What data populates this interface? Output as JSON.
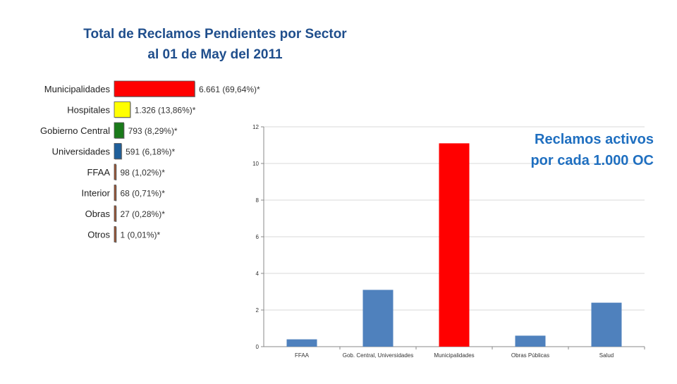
{
  "title_line1": "Total de Reclamos Pendientes por Sector",
  "title_line2": "al 01 de May del 2011",
  "note_line1": "Reclamos activos",
  "note_line2": "por cada 1.000 OC",
  "chart_data": [
    {
      "type": "bar",
      "orientation": "horizontal",
      "title": "Total de Reclamos Pendientes por Sector al 01 de May del 2011",
      "categories": [
        "Municipalidades",
        "Hospitales",
        "Gobierno Central",
        "Universidades",
        "FFAA",
        "Interior",
        "Obras",
        "Otros"
      ],
      "values": [
        6661,
        1326,
        793,
        591,
        98,
        68,
        27,
        1
      ],
      "value_labels": [
        "6.661 (69,64%)*",
        "1.326 (13,86%)*",
        "793 (8,29%)*",
        "591 (6,18%)*",
        "98 (1,02%)*",
        "68 (0,71%)*",
        "27 (0,28%)*",
        "1 (0,01%)*"
      ],
      "colors": [
        "#ff0000",
        "#ffff00",
        "#1a7a1a",
        "#1f5f9a",
        "#a0522d",
        "#a0522d",
        "#a0522d",
        "#a0522d"
      ]
    },
    {
      "type": "bar",
      "orientation": "vertical",
      "title": "Reclamos activos por cada 1.000 OC",
      "categories": [
        "FFAA",
        "Gob. Central, Universidades",
        "Municipalidades",
        "Obras Públicas",
        "Salud"
      ],
      "values": [
        0.4,
        3.1,
        11.1,
        0.6,
        2.4
      ],
      "colors": [
        "#4f81bd",
        "#4f81bd",
        "#ff0000",
        "#4f81bd",
        "#4f81bd"
      ],
      "ylim": [
        0,
        12
      ],
      "yticks": [
        0,
        2,
        4,
        6,
        8,
        10,
        12
      ],
      "grid": true
    }
  ]
}
